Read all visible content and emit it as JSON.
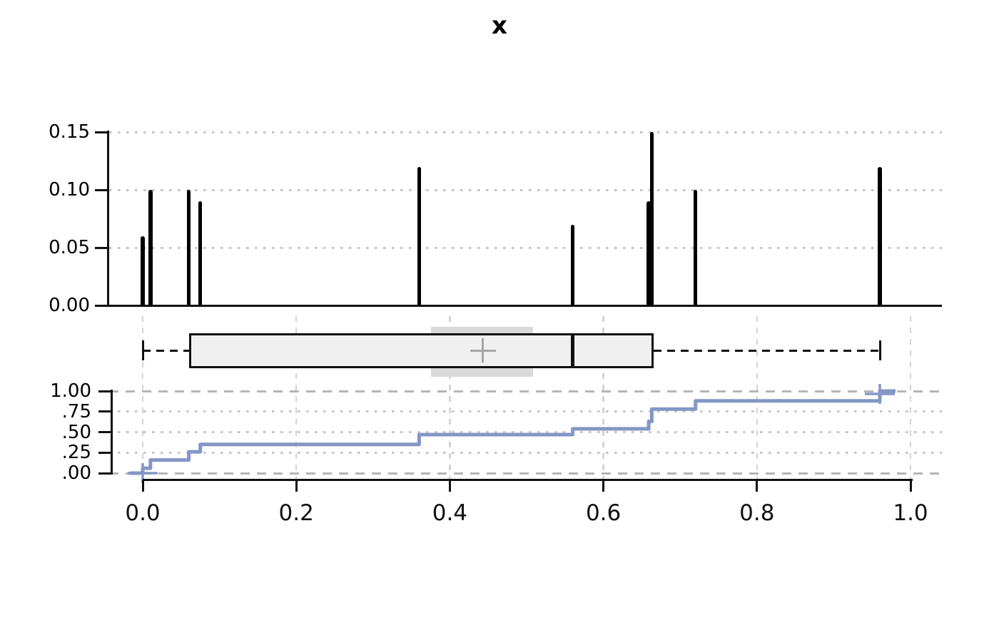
{
  "title": "x",
  "x_axis": {
    "tick_values": [
      0,
      0.2,
      0.4,
      0.6,
      0.8,
      1.0
    ],
    "tick_labels": [
      "0.0",
      "0.2",
      "0.4",
      "0.6",
      "0.8",
      "1.0"
    ],
    "range": [
      0,
      1
    ]
  },
  "chart_data": [
    {
      "type": "bar",
      "subtype": "spike-pmf",
      "title": "x",
      "x": [
        0,
        0.01,
        0.06,
        0.075,
        0.36,
        0.56,
        0.659,
        0.663,
        0.72,
        0.96
      ],
      "values": [
        0.06,
        0.1,
        0.1,
        0.09,
        0.12,
        0.07,
        0.09,
        0.15,
        0.1,
        0.12
      ],
      "ylim": [
        0,
        0.15
      ],
      "ytick_values": [
        0,
        0.05,
        0.1,
        0.15
      ],
      "ytick_labels": [
        "0.00",
        "0.05",
        "0.10",
        "0.15"
      ],
      "grid": "horizontal-dotted",
      "legend": "none"
    },
    {
      "type": "boxplot",
      "orientation": "horizontal",
      "whisker_low": 0.0,
      "q1": 0.06,
      "median": 0.56,
      "q3": 0.665,
      "whisker_high": 0.96,
      "mean": 0.443,
      "mean_marker": "plus",
      "mean_ci": [
        0.375,
        0.508
      ]
    },
    {
      "type": "line",
      "subtype": "ecdf-step",
      "x": [
        0,
        0.01,
        0.06,
        0.075,
        0.36,
        0.56,
        0.659,
        0.663,
        0.72,
        0.96
      ],
      "cumulative": [
        0.06,
        0.16,
        0.26,
        0.35,
        0.47,
        0.54,
        0.63,
        0.78,
        0.88,
        1.0
      ],
      "ylim": [
        0,
        1
      ],
      "ytick_values": [
        1.0,
        0.75,
        0.5,
        0.25,
        0
      ],
      "ytick_labels": [
        "1.00",
        ".75",
        ".50",
        ".25",
        ".00"
      ],
      "grid": "horizontal dotted at quartiles, dashed at 0 and 1, vertical dashed at x ticks",
      "endpoint_markers": "plus at first and last point"
    }
  ],
  "colors": {
    "spike": "#000000",
    "ecdf_line": "#8396c6",
    "box_fill": "#f0f0f0",
    "box_border": "#111111",
    "ci_band": "#d9d9d9",
    "mean_cross": "#a6a6a6",
    "grid_dotted": "#c6c6c6",
    "grid_dashed": "#b5b5b5",
    "grid_vertical": "#d4d4d4",
    "axis": "#111111"
  }
}
